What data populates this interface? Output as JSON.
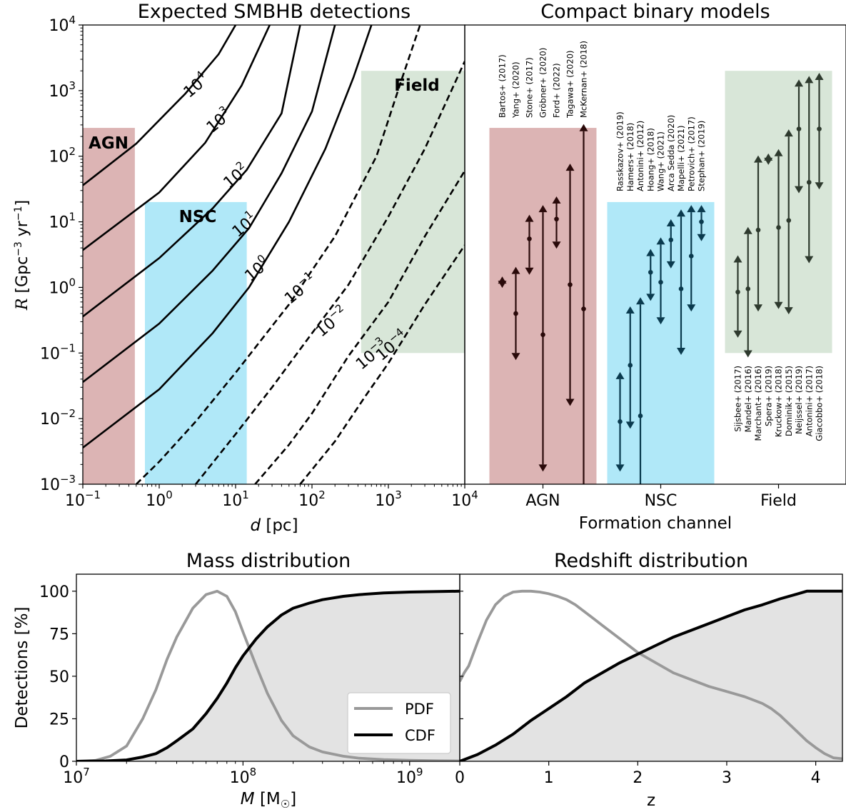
{
  "chart_data": [
    {
      "type": "line",
      "title": "Expected SMBHB detections",
      "xlabel": "d [pc]",
      "ylabel": "R [Gpc^-3 yr^-1]",
      "xscale": "log",
      "yscale": "log",
      "xlim": [
        0.1,
        10000
      ],
      "ylim": [
        0.001,
        10000
      ],
      "x_ticks": [
        "10^-1",
        "10^0",
        "10^1",
        "10^2",
        "10^3",
        "10^4"
      ],
      "y_ticks": [
        "10^-3",
        "10^-2",
        "10^-1",
        "10^0",
        "10^1",
        "10^2",
        "10^3",
        "10^4"
      ],
      "regions": [
        {
          "name": "AGN",
          "color": "#dcb4b4",
          "label_color": "#b02a2a",
          "x": [
            0.1,
            0.48
          ],
          "y": [
            0.001,
            270
          ]
        },
        {
          "name": "NSC",
          "color": "#b0e8f8",
          "label_color": "#22c0ee",
          "x": [
            0.65,
            14
          ],
          "y": [
            0.001,
            20
          ]
        },
        {
          "name": "Field",
          "color": "#d8e6d8",
          "label_color": "#8cc08c",
          "x": [
            440,
            10000
          ],
          "y": [
            0.1,
            2000
          ]
        }
      ],
      "contours": [
        {
          "label": "10^4",
          "exp": "4",
          "style": "solid",
          "points": [
            [
              0.1,
              36
            ],
            [
              0.5,
              155
            ],
            [
              2.2,
              900
            ],
            [
              6,
              3600
            ],
            [
              10,
              10000
            ]
          ],
          "label_at": [
            3.0,
            1200
          ]
        },
        {
          "label": "10^3",
          "exp": "3",
          "style": "solid",
          "points": [
            [
              0.1,
              3.7
            ],
            [
              1,
              28
            ],
            [
              4,
              160
            ],
            [
              12,
              1200
            ],
            [
              28,
              10000
            ]
          ],
          "label_at": [
            6.0,
            350
          ]
        },
        {
          "label": "10^2",
          "exp": "2",
          "style": "solid",
          "points": [
            [
              0.1,
              0.36
            ],
            [
              1,
              2.8
            ],
            [
              5,
              16
            ],
            [
              14,
              62
            ],
            [
              40,
              450
            ],
            [
              70,
              10000
            ]
          ],
          "label_at": [
            10,
            50
          ]
        },
        {
          "label": "10^1",
          "exp": "1",
          "style": "solid",
          "points": [
            [
              0.1,
              0.036
            ],
            [
              1,
              0.28
            ],
            [
              5,
              1.8
            ],
            [
              15,
              8
            ],
            [
              40,
              55
            ],
            [
              100,
              480
            ],
            [
              200,
              10000
            ]
          ],
          "label_at": [
            13,
            9
          ]
        },
        {
          "label": "10^0",
          "exp": "0",
          "style": "solid",
          "points": [
            [
              0.1,
              0.0036
            ],
            [
              1,
              0.028
            ],
            [
              5,
              0.2
            ],
            [
              15,
              1
            ],
            [
              50,
              10
            ],
            [
              150,
              130
            ],
            [
              350,
              1600
            ],
            [
              600,
              10000
            ]
          ],
          "label_at": [
            19,
            1.9
          ]
        },
        {
          "label": "10^-1",
          "exp": "-1",
          "style": "dashed",
          "points": [
            [
              0.5,
              0.001
            ],
            [
              1,
              0.0022
            ],
            [
              3,
              0.009
            ],
            [
              10,
              0.05
            ],
            [
              50,
              0.55
            ],
            [
              200,
              6
            ],
            [
              700,
              100
            ],
            [
              1500,
              1500
            ],
            [
              2600,
              10000
            ]
          ],
          "label_at": [
            70,
            0.95
          ]
        },
        {
          "label": "10^-2",
          "exp": "-2",
          "style": "dashed",
          "points": [
            [
              3,
              0.001
            ],
            [
              10,
              0.0058
            ],
            [
              30,
              0.03
            ],
            [
              100,
              0.2
            ],
            [
              300,
              1.1
            ],
            [
              1000,
              12
            ],
            [
              3000,
              130
            ],
            [
              10000,
              2800
            ]
          ],
          "label_at": [
            180,
            0.3
          ]
        },
        {
          "label": "10^-3",
          "exp": "-3",
          "style": "dashed",
          "points": [
            [
              18,
              0.001
            ],
            [
              50,
              0.004
            ],
            [
              100,
              0.012
            ],
            [
              300,
              0.09
            ],
            [
              1000,
              0.6
            ],
            [
              3000,
              6
            ],
            [
              10000,
              60
            ]
          ],
          "label_at": [
            600,
            0.095
          ]
        },
        {
          "label": "10^-4",
          "exp": "-4",
          "style": "dashed",
          "points": [
            [
              70,
              0.001
            ],
            [
              200,
              0.0045
            ],
            [
              500,
              0.022
            ],
            [
              1000,
              0.07
            ],
            [
              3000,
              0.55
            ],
            [
              10000,
              4.4
            ]
          ],
          "label_at": [
            1100,
            0.13
          ]
        }
      ]
    },
    {
      "type": "scatter",
      "title": "Compact binary models",
      "xlabel": "Formation channel",
      "categories": [
        "AGN",
        "NSC",
        "Field"
      ],
      "yscale": "log",
      "ylim": [
        0.001,
        10000
      ],
      "regions": [
        {
          "name": "AGN",
          "color": "#dcb4b4",
          "x": [
            -0.5,
            0.5
          ],
          "y": [
            0.001,
            270
          ]
        },
        {
          "name": "NSC",
          "color": "#b0e8f8",
          "x": [
            0.6,
            1.6
          ],
          "y": [
            0.001,
            20
          ]
        },
        {
          "name": "Field",
          "color": "#d8e6d8",
          "x": [
            1.7,
            2.7
          ],
          "y": [
            0.1,
            2000
          ]
        }
      ],
      "groups": [
        {
          "channel": "AGN",
          "color": "#2a0a0a",
          "models": [
            {
              "ref": "Bartos+ (2017)",
              "center": 1.2,
              "low": 1.1,
              "high": 1.3,
              "kind": "narrow"
            },
            {
              "ref": "Yang+ (2020)",
              "center": 0.4,
              "low": 0.1,
              "high": 1.6,
              "kind": "range"
            },
            {
              "ref": "Stone+ (2017)",
              "center": 5.5,
              "low": 2.0,
              "high": 10,
              "kind": "range"
            },
            {
              "ref": "Gröbner+ (2020)",
              "center": 0.19,
              "low": 0.002,
              "high": 14,
              "kind": "range"
            },
            {
              "ref": "Ford+ (2022)",
              "center": 11,
              "low": 5.0,
              "high": 19,
              "kind": "range"
            },
            {
              "ref": "Tagawa+ (2020)",
              "center": 1.1,
              "low": 0.02,
              "high": 60,
              "kind": "range"
            },
            {
              "ref": "McKernan+ (2018)",
              "center": 0.47,
              "low": 0.001,
              "high": 240,
              "kind": "range"
            }
          ]
        },
        {
          "channel": "NSC",
          "color": "#0a3a4e",
          "models": [
            {
              "ref": "Rasskazov+ (2019)",
              "center": 0.009,
              "low": 0.002,
              "high": 0.04,
              "kind": "range"
            },
            {
              "ref": "Hamers+ (2018)",
              "center": 0.065,
              "low": 0.009,
              "high": 0.4,
              "kind": "range"
            },
            {
              "ref": "Antonini+ (2012)",
              "center": 0.011,
              "low": 0.001,
              "high": 0.55,
              "kind": "range"
            },
            {
              "ref": "Hoang+ (2018)",
              "center": 1.7,
              "low": 0.8,
              "high": 3.0,
              "kind": "range"
            },
            {
              "ref": "Wang+ (2021)",
              "center": 1.2,
              "low": 0.35,
              "high": 4.5,
              "kind": "range"
            },
            {
              "ref": "Arca Sedda (2020)",
              "center": 5.3,
              "low": 2.5,
              "high": 8.5,
              "kind": "range"
            },
            {
              "ref": "Mapelli+ (2021)",
              "center": 0.95,
              "low": 0.12,
              "high": 12,
              "kind": "range"
            },
            {
              "ref": "Petrovich+ (2017)",
              "center": 3.0,
              "low": 0.55,
              "high": 14,
              "kind": "range"
            },
            {
              "ref": "Stephan+ (2019)",
              "center": 10,
              "low": 6.5,
              "high": 14,
              "kind": "range"
            }
          ]
        },
        {
          "channel": "Field",
          "color": "#2e3a2e",
          "models": [
            {
              "ref": "Sijsbee+ (2017)",
              "center": 0.85,
              "low": 0.22,
              "high": 2.4,
              "kind": "range"
            },
            {
              "ref": "Mandel+ (2016)",
              "center": 0.95,
              "low": 0.11,
              "high": 6.5,
              "kind": "range"
            },
            {
              "ref": "Marchant+ (2016)",
              "center": 7.5,
              "low": 0.55,
              "high": 80,
              "kind": "range"
            },
            {
              "ref": "Spera+ (2019)",
              "center": 90,
              "low": 85,
              "high": 95,
              "kind": "narrow"
            },
            {
              "ref": "Kruckow+ (2018)",
              "center": 8.2,
              "low": 0.6,
              "high": 100,
              "kind": "range"
            },
            {
              "ref": "Dominik+ (2015)",
              "center": 10.5,
              "low": 0.5,
              "high": 200,
              "kind": "range"
            },
            {
              "ref": "Neijssel+ (2019)",
              "center": 260,
              "low": 35,
              "high": 1150,
              "kind": "range"
            },
            {
              "ref": "Antonini+ (2017)",
              "center": 40,
              "low": 3.0,
              "high": 1300,
              "kind": "range"
            },
            {
              "ref": "Giacobbo+ (2018)",
              "center": 260,
              "low": 40,
              "high": 1450,
              "kind": "range"
            }
          ]
        }
      ]
    },
    {
      "type": "line",
      "title": "Mass distribution",
      "xlabel": "M [M☉]",
      "ylabel": "Detections [%]",
      "xscale": "log",
      "xlim": [
        10000000,
        2000000000
      ],
      "ylim": [
        0,
        110
      ],
      "x_ticks": [
        "10^7",
        "10^8",
        "10^9"
      ],
      "y_ticks": [
        0,
        25,
        50,
        75,
        100
      ],
      "legend": {
        "placement": "lower-center",
        "entries": [
          "PDF",
          "CDF"
        ]
      },
      "series": [
        {
          "name": "PDF",
          "color": "#999999",
          "x": [
            10000000.0,
            13000000.0,
            16000000.0,
            20000000.0,
            25000000.0,
            30000000.0,
            35000000.0,
            40000000.0,
            50000000.0,
            60000000.0,
            70000000.0,
            80000000.0,
            90000000.0,
            100000000.0,
            120000000.0,
            140000000.0,
            170000000.0,
            200000000.0,
            250000000.0,
            300000000.0,
            400000000.0,
            500000000.0,
            700000000.0,
            1000000000.0,
            1500000000.0,
            2000000000.0
          ],
          "y": [
            0,
            0.5,
            3,
            9,
            25,
            42,
            60,
            73,
            90,
            98,
            100,
            97,
            88,
            76,
            56,
            40,
            24,
            15,
            8.5,
            5.5,
            3,
            1.8,
            1,
            0.6,
            0.3,
            0.2
          ]
        },
        {
          "name": "CDF",
          "color": "#000000",
          "x": [
            10000000.0,
            15000000.0,
            20000000.0,
            25000000.0,
            30000000.0,
            35000000.0,
            40000000.0,
            50000000.0,
            60000000.0,
            70000000.0,
            80000000.0,
            90000000.0,
            100000000.0,
            120000000.0,
            140000000.0,
            170000000.0,
            200000000.0,
            250000000.0,
            300000000.0,
            400000000.0,
            500000000.0,
            700000000.0,
            1000000000.0,
            1500000000.0,
            2000000000.0
          ],
          "y": [
            0,
            0.2,
            0.8,
            2.5,
            4.5,
            8,
            12,
            19,
            28,
            37,
            46,
            55,
            62,
            72,
            79,
            86,
            90,
            93,
            95,
            97,
            98,
            99,
            99.5,
            99.8,
            100
          ]
        }
      ]
    },
    {
      "type": "line",
      "title": "Redshift distribution",
      "xlabel": "z",
      "xlim": [
        0,
        4.3
      ],
      "ylim": [
        0,
        110
      ],
      "x_ticks": [
        0,
        1,
        2,
        3,
        4
      ],
      "series": [
        {
          "name": "PDF",
          "color": "#999999",
          "x": [
            0,
            0.05,
            0.1,
            0.2,
            0.3,
            0.4,
            0.5,
            0.6,
            0.7,
            0.8,
            0.9,
            1.0,
            1.1,
            1.2,
            1.3,
            1.4,
            1.5,
            1.6,
            1.8,
            2.0,
            2.2,
            2.4,
            2.6,
            2.8,
            3.0,
            3.2,
            3.4,
            3.5,
            3.6,
            3.7,
            3.8,
            3.9,
            4.0,
            4.1,
            4.2,
            4.3
          ],
          "y": [
            47,
            52,
            56,
            70,
            83,
            92,
            97,
            99.5,
            100,
            100,
            99.5,
            98.5,
            97,
            95,
            92,
            88,
            84,
            80,
            72,
            64,
            58,
            52,
            48,
            44,
            41,
            38,
            34,
            31,
            27,
            22,
            17,
            12,
            8,
            4.5,
            2,
            1.5
          ]
        },
        {
          "name": "CDF",
          "color": "#000000",
          "x": [
            0,
            0.2,
            0.4,
            0.6,
            0.8,
            1.0,
            1.2,
            1.4,
            1.6,
            1.8,
            2.0,
            2.2,
            2.4,
            2.6,
            2.8,
            3.0,
            3.2,
            3.4,
            3.6,
            3.8,
            3.9,
            4.0,
            4.3
          ],
          "y": [
            0,
            4,
            9.5,
            16,
            24,
            31,
            38,
            46,
            52,
            58,
            63,
            68,
            73,
            77,
            81,
            85,
            89,
            92,
            95.5,
            98.5,
            100,
            100,
            100
          ]
        }
      ]
    }
  ]
}
